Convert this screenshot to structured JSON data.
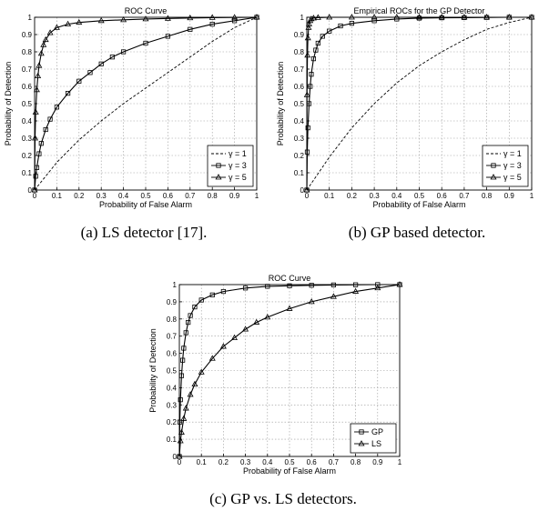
{
  "chart_data": [
    {
      "type": "line",
      "title": "ROC Curve",
      "xlabel": "Probability of False Alarm",
      "ylabel": "Probability of Detection",
      "caption": "(a)  LS detector [17].",
      "xlim": [
        0,
        1
      ],
      "ylim": [
        0,
        1
      ],
      "xticks": [
        "0",
        "0.1",
        "0.2",
        "0.3",
        "0.4",
        "0.5",
        "0.6",
        "0.7",
        "0.8",
        "0.9",
        "1"
      ],
      "yticks": [
        "0",
        "0.1",
        "0.2",
        "0.3",
        "0.4",
        "0.5",
        "0.6",
        "0.7",
        "0.8",
        "0.9",
        "1"
      ],
      "grid": true,
      "legend_position": "bottom-right",
      "series": [
        {
          "name": "γ = 1",
          "style": "dashed",
          "marker": "none",
          "x": [
            0,
            0.1,
            0.2,
            0.3,
            0.4,
            0.5,
            0.6,
            0.7,
            0.8,
            0.9,
            1.0
          ],
          "y": [
            0,
            0.16,
            0.29,
            0.4,
            0.5,
            0.59,
            0.68,
            0.77,
            0.86,
            0.94,
            1.0
          ]
        },
        {
          "name": "γ = 3",
          "style": "solid",
          "marker": "square",
          "x": [
            0,
            0.005,
            0.01,
            0.02,
            0.03,
            0.05,
            0.07,
            0.1,
            0.15,
            0.2,
            0.25,
            0.3,
            0.35,
            0.4,
            0.5,
            0.6,
            0.7,
            0.8,
            0.9,
            1.0
          ],
          "y": [
            0,
            0.08,
            0.13,
            0.21,
            0.27,
            0.35,
            0.41,
            0.48,
            0.56,
            0.63,
            0.68,
            0.73,
            0.77,
            0.8,
            0.85,
            0.89,
            0.93,
            0.96,
            0.98,
            1.0
          ]
        },
        {
          "name": "γ = 5",
          "style": "solid",
          "marker": "triangle",
          "x": [
            0,
            0.002,
            0.005,
            0.01,
            0.015,
            0.02,
            0.03,
            0.04,
            0.05,
            0.07,
            0.1,
            0.15,
            0.2,
            0.3,
            0.4,
            0.5,
            0.6,
            0.7,
            0.8,
            0.9,
            1.0
          ],
          "y": [
            0,
            0.3,
            0.45,
            0.58,
            0.66,
            0.72,
            0.79,
            0.84,
            0.87,
            0.91,
            0.94,
            0.96,
            0.97,
            0.98,
            0.985,
            0.99,
            0.993,
            0.996,
            0.998,
            0.999,
            1.0
          ]
        }
      ]
    },
    {
      "type": "line",
      "title": "Empirical ROCs for the GP Detector",
      "xlabel": "Probability of False Alarm",
      "ylabel": "Probability of Detection",
      "caption": "(b)  GP based detector.",
      "xlim": [
        0,
        1
      ],
      "ylim": [
        0,
        1
      ],
      "xticks": [
        "0",
        "0.1",
        "0.2",
        "0.3",
        "0.4",
        "0.5",
        "0.6",
        "0.7",
        "0.8",
        "0.9",
        "1"
      ],
      "yticks": [
        "0",
        "0.1",
        "0.2",
        "0.3",
        "0.4",
        "0.5",
        "0.6",
        "0.7",
        "0.8",
        "0.9",
        "1"
      ],
      "grid": true,
      "legend_position": "bottom-right",
      "series": [
        {
          "name": "γ = 1",
          "style": "dashed",
          "marker": "none",
          "x": [
            0,
            0.1,
            0.2,
            0.3,
            0.4,
            0.5,
            0.6,
            0.7,
            0.8,
            0.9,
            1.0
          ],
          "y": [
            0,
            0.19,
            0.36,
            0.5,
            0.62,
            0.72,
            0.8,
            0.87,
            0.93,
            0.97,
            1.0
          ]
        },
        {
          "name": "γ = 3",
          "style": "solid",
          "marker": "square",
          "x": [
            0,
            0.002,
            0.005,
            0.01,
            0.015,
            0.02,
            0.03,
            0.04,
            0.05,
            0.07,
            0.1,
            0.15,
            0.2,
            0.3,
            0.4,
            0.5,
            0.6,
            0.7,
            0.8,
            0.9,
            1.0
          ],
          "y": [
            0,
            0.22,
            0.36,
            0.5,
            0.6,
            0.67,
            0.76,
            0.81,
            0.85,
            0.89,
            0.92,
            0.95,
            0.965,
            0.98,
            0.99,
            0.995,
            0.997,
            0.998,
            0.999,
            1.0,
            1.0
          ]
        },
        {
          "name": "γ = 5",
          "style": "solid",
          "marker": "triangle",
          "x": [
            0,
            0.001,
            0.003,
            0.005,
            0.008,
            0.01,
            0.015,
            0.02,
            0.03,
            0.05,
            0.1,
            0.2,
            0.3,
            0.4,
            0.5,
            0.6,
            0.7,
            0.8,
            0.9,
            1.0
          ],
          "y": [
            0,
            0.55,
            0.78,
            0.88,
            0.94,
            0.96,
            0.98,
            0.99,
            0.995,
            0.998,
            1.0,
            1.0,
            1.0,
            1.0,
            1.0,
            1.0,
            1.0,
            1.0,
            1.0,
            1.0
          ]
        }
      ]
    },
    {
      "type": "line",
      "title": "ROC Curve",
      "xlabel": "Probability of False Alarm",
      "ylabel": "Probability of Detection",
      "caption": "(c)  GP vs. LS detectors.",
      "xlim": [
        0,
        1
      ],
      "ylim": [
        0,
        1
      ],
      "xticks": [
        "0",
        "0.1",
        "0.2",
        "0.3",
        "0.4",
        "0.5",
        "0.6",
        "0.7",
        "0.8",
        "0.9",
        "1"
      ],
      "yticks": [
        "0",
        "0.1",
        "0.2",
        "0.3",
        "0.4",
        "0.5",
        "0.6",
        "0.7",
        "0.8",
        "0.9",
        "1"
      ],
      "grid": true,
      "legend_position": "bottom-right",
      "series": [
        {
          "name": "GP",
          "style": "solid",
          "marker": "square",
          "x": [
            0,
            0.002,
            0.005,
            0.01,
            0.015,
            0.02,
            0.03,
            0.04,
            0.05,
            0.07,
            0.1,
            0.15,
            0.2,
            0.3,
            0.4,
            0.5,
            0.6,
            0.7,
            0.8,
            0.9,
            1.0
          ],
          "y": [
            0,
            0.2,
            0.33,
            0.47,
            0.56,
            0.63,
            0.72,
            0.78,
            0.82,
            0.87,
            0.91,
            0.94,
            0.96,
            0.98,
            0.99,
            0.993,
            0.996,
            0.998,
            0.999,
            1.0,
            1.0
          ]
        },
        {
          "name": "LS",
          "style": "solid",
          "marker": "triangle",
          "x": [
            0,
            0.005,
            0.01,
            0.02,
            0.03,
            0.05,
            0.07,
            0.1,
            0.15,
            0.2,
            0.25,
            0.3,
            0.35,
            0.4,
            0.5,
            0.6,
            0.7,
            0.8,
            0.9,
            1.0
          ],
          "y": [
            0,
            0.09,
            0.14,
            0.22,
            0.28,
            0.36,
            0.42,
            0.49,
            0.57,
            0.64,
            0.69,
            0.74,
            0.78,
            0.81,
            0.86,
            0.9,
            0.93,
            0.96,
            0.98,
            1.0
          ]
        }
      ]
    }
  ]
}
